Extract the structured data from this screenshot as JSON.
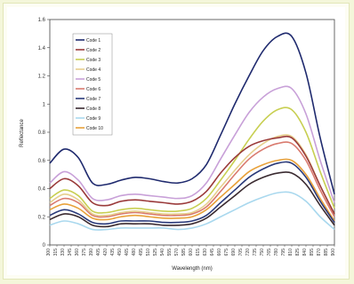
{
  "chart_data": {
    "type": "line",
    "title": "",
    "xlabel": "Wavelength (nm)",
    "ylabel": "Reflectance",
    "ylim": [
      0,
      1.6
    ],
    "yticks": [
      "0",
      "0.2",
      "0.4",
      "0.6",
      "0.8",
      "1",
      "1.2",
      "1.4",
      "1.6"
    ],
    "x": [
      300,
      330,
      360,
      390,
      420,
      450,
      480,
      510,
      540,
      570,
      600,
      630,
      660,
      690,
      720,
      750,
      780,
      810,
      840,
      870,
      900
    ],
    "x_tick_labels": [
      "300",
      "315",
      "330",
      "345",
      "360",
      "375",
      "390",
      "405",
      "420",
      "435",
      "450",
      "465",
      "480",
      "495",
      "510",
      "525",
      "540",
      "555",
      "570",
      "585",
      "600",
      "615",
      "630",
      "645",
      "660",
      "675",
      "690",
      "705",
      "720",
      "735",
      "750",
      "765",
      "780",
      "795",
      "810",
      "825",
      "840",
      "855",
      "870",
      "885",
      "900"
    ],
    "legend_position": "top-left",
    "series": [
      {
        "name": "Code 1",
        "color": "#1f2a6e",
        "values": [
          0.58,
          0.68,
          0.62,
          0.44,
          0.43,
          0.46,
          0.48,
          0.47,
          0.45,
          0.44,
          0.47,
          0.57,
          0.78,
          1.0,
          1.2,
          1.38,
          1.48,
          1.48,
          1.22,
          0.76,
          0.36
        ]
      },
      {
        "name": "Code 2",
        "color": "#9a3a3a",
        "values": [
          0.4,
          0.47,
          0.42,
          0.3,
          0.28,
          0.31,
          0.32,
          0.31,
          0.3,
          0.29,
          0.31,
          0.38,
          0.51,
          0.62,
          0.7,
          0.74,
          0.76,
          0.76,
          0.63,
          0.42,
          0.22
        ]
      },
      {
        "name": "Code 3",
        "color": "#c8cf52",
        "values": [
          0.33,
          0.39,
          0.35,
          0.24,
          0.23,
          0.25,
          0.26,
          0.25,
          0.24,
          0.24,
          0.26,
          0.33,
          0.46,
          0.6,
          0.75,
          0.88,
          0.96,
          0.96,
          0.8,
          0.52,
          0.26
        ]
      },
      {
        "name": "Code 4",
        "color": "#e6cf8e",
        "values": [
          0.3,
          0.36,
          0.32,
          0.22,
          0.21,
          0.23,
          0.24,
          0.23,
          0.22,
          0.22,
          0.23,
          0.29,
          0.41,
          0.53,
          0.64,
          0.72,
          0.77,
          0.77,
          0.64,
          0.42,
          0.22
        ]
      },
      {
        "name": "Code 5",
        "color": "#c8a0d8",
        "values": [
          0.44,
          0.52,
          0.46,
          0.33,
          0.32,
          0.35,
          0.36,
          0.35,
          0.34,
          0.33,
          0.35,
          0.44,
          0.61,
          0.78,
          0.94,
          1.05,
          1.11,
          1.11,
          0.93,
          0.6,
          0.3
        ]
      },
      {
        "name": "Code 6",
        "color": "#d97a6e",
        "values": [
          0.28,
          0.33,
          0.3,
          0.21,
          0.2,
          0.22,
          0.23,
          0.22,
          0.21,
          0.21,
          0.22,
          0.27,
          0.38,
          0.5,
          0.61,
          0.68,
          0.72,
          0.72,
          0.6,
          0.39,
          0.2
        ]
      },
      {
        "name": "Code 7",
        "color": "#2a3a7a",
        "values": [
          0.21,
          0.25,
          0.22,
          0.16,
          0.15,
          0.17,
          0.17,
          0.17,
          0.16,
          0.16,
          0.17,
          0.21,
          0.3,
          0.39,
          0.48,
          0.54,
          0.58,
          0.58,
          0.48,
          0.31,
          0.16
        ]
      },
      {
        "name": "Code 8",
        "color": "#3a2a30",
        "values": [
          0.18,
          0.22,
          0.2,
          0.14,
          0.13,
          0.15,
          0.15,
          0.15,
          0.14,
          0.14,
          0.15,
          0.19,
          0.27,
          0.35,
          0.43,
          0.48,
          0.51,
          0.51,
          0.43,
          0.28,
          0.14
        ]
      },
      {
        "name": "Code 9",
        "color": "#a9d8ee",
        "values": [
          0.14,
          0.17,
          0.15,
          0.11,
          0.11,
          0.12,
          0.12,
          0.12,
          0.12,
          0.11,
          0.12,
          0.15,
          0.2,
          0.25,
          0.3,
          0.34,
          0.37,
          0.37,
          0.31,
          0.2,
          0.11
        ]
      },
      {
        "name": "Code 10",
        "color": "#e8a13a",
        "values": [
          0.25,
          0.29,
          0.26,
          0.19,
          0.18,
          0.2,
          0.21,
          0.2,
          0.19,
          0.19,
          0.2,
          0.25,
          0.34,
          0.43,
          0.52,
          0.57,
          0.6,
          0.6,
          0.5,
          0.33,
          0.17
        ]
      }
    ]
  }
}
